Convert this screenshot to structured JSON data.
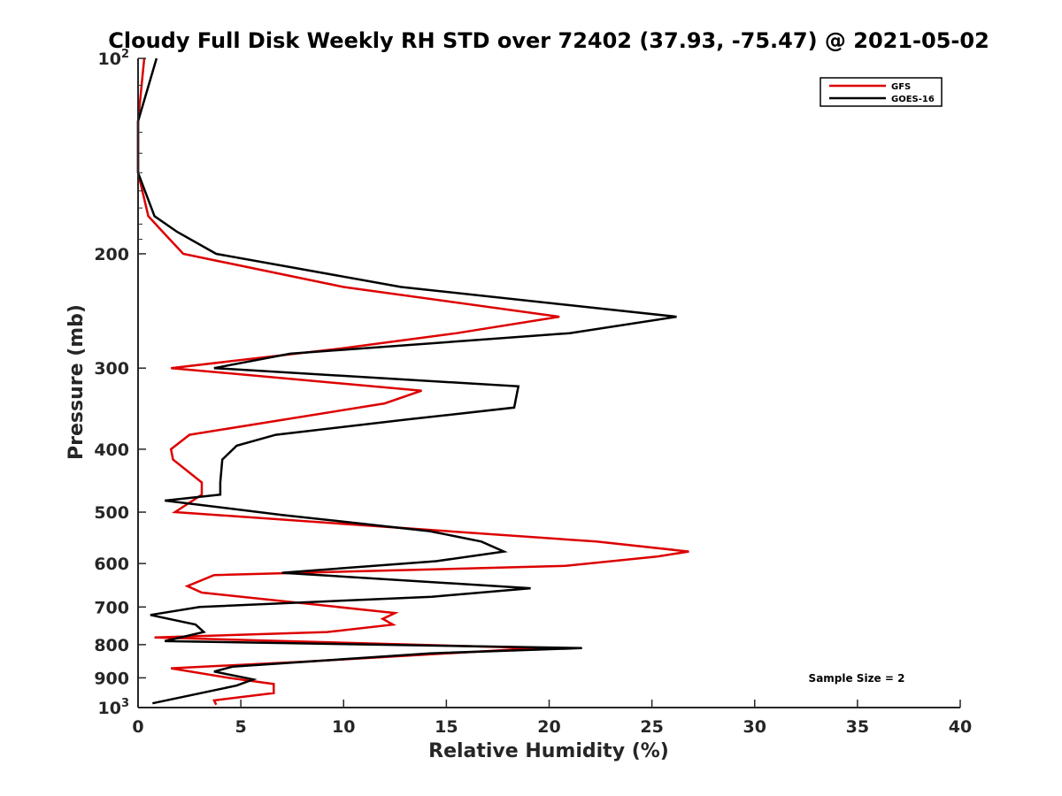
{
  "chart_data": {
    "type": "line",
    "title": "Cloudy Full Disk Weekly RH STD over 72402 (37.93, -75.47) @ 2021-05-02",
    "xlabel": "Relative Humidity (%)",
    "ylabel": "Pressure (mb)",
    "xlim": [
      0,
      40
    ],
    "ylim": [
      100,
      1000
    ],
    "yscale": "log",
    "y_reversed": true,
    "grid": false,
    "legend_position": "top-right",
    "x_ticks": [
      0,
      5,
      10,
      15,
      20,
      25,
      30,
      35,
      40
    ],
    "y_ticks": [
      {
        "value": 100,
        "base": "10",
        "exp": "2"
      },
      {
        "value": 200,
        "label": "200"
      },
      {
        "value": 300,
        "label": "300"
      },
      {
        "value": 400,
        "label": "400"
      },
      {
        "value": 500,
        "label": "500"
      },
      {
        "value": 600,
        "label": "600"
      },
      {
        "value": 700,
        "label": "700"
      },
      {
        "value": 800,
        "label": "800"
      },
      {
        "value": 900,
        "label": "900"
      },
      {
        "value": 1000,
        "base": "10",
        "exp": "3"
      }
    ],
    "annotation": "Sample Size = 2",
    "series": [
      {
        "name": "GFS",
        "color": "#dd0000",
        "points": [
          [
            0.3,
            100
          ],
          [
            0.0,
            125
          ],
          [
            0.0,
            150
          ],
          [
            0.5,
            175
          ],
          [
            1.2,
            185
          ],
          [
            2.2,
            200
          ],
          [
            10.0,
            225
          ],
          [
            20.5,
            250
          ],
          [
            15.5,
            265
          ],
          [
            9.8,
            280
          ],
          [
            1.6,
            300
          ],
          [
            13.8,
            325
          ],
          [
            12.0,
            340
          ],
          [
            2.5,
            380
          ],
          [
            1.6,
            400
          ],
          [
            1.7,
            415
          ],
          [
            3.1,
            450
          ],
          [
            3.1,
            470
          ],
          [
            1.8,
            500
          ],
          [
            22.3,
            555
          ],
          [
            26.8,
            575
          ],
          [
            25.3,
            585
          ],
          [
            20.8,
            605
          ],
          [
            3.7,
            625
          ],
          [
            2.4,
            650
          ],
          [
            3.1,
            665
          ],
          [
            12.5,
            715
          ],
          [
            11.9,
            730
          ],
          [
            12.4,
            745
          ],
          [
            9.2,
            765
          ],
          [
            0.8,
            780
          ],
          [
            19.5,
            810
          ],
          [
            8.0,
            850
          ],
          [
            1.6,
            870
          ],
          [
            4.4,
            900
          ],
          [
            6.6,
            920
          ],
          [
            6.6,
            950
          ],
          [
            3.7,
            975
          ],
          [
            3.8,
            990
          ]
        ]
      },
      {
        "name": "GOES-16",
        "color": "#000000",
        "points": [
          [
            0.9,
            100
          ],
          [
            0.0,
            125
          ],
          [
            0.0,
            150
          ],
          [
            0.8,
            175
          ],
          [
            1.9,
            185
          ],
          [
            3.8,
            200
          ],
          [
            12.8,
            225
          ],
          [
            26.2,
            250
          ],
          [
            21.0,
            265
          ],
          [
            7.4,
            285
          ],
          [
            3.7,
            300
          ],
          [
            18.5,
            320
          ],
          [
            18.3,
            345
          ],
          [
            13.1,
            360
          ],
          [
            6.7,
            380
          ],
          [
            4.8,
            395
          ],
          [
            4.1,
            415
          ],
          [
            4.0,
            450
          ],
          [
            4.0,
            470
          ],
          [
            1.3,
            480
          ],
          [
            7.0,
            505
          ],
          [
            14.2,
            535
          ],
          [
            16.7,
            555
          ],
          [
            17.8,
            575
          ],
          [
            14.5,
            595
          ],
          [
            7.0,
            620
          ],
          [
            19.1,
            655
          ],
          [
            14.3,
            675
          ],
          [
            3.0,
            700
          ],
          [
            0.6,
            720
          ],
          [
            2.8,
            745
          ],
          [
            3.2,
            765
          ],
          [
            1.3,
            790
          ],
          [
            21.6,
            810
          ],
          [
            14.2,
            825
          ],
          [
            4.6,
            865
          ],
          [
            3.7,
            880
          ],
          [
            5.6,
            905
          ],
          [
            4.8,
            925
          ],
          [
            0.7,
            985
          ]
        ]
      }
    ]
  }
}
